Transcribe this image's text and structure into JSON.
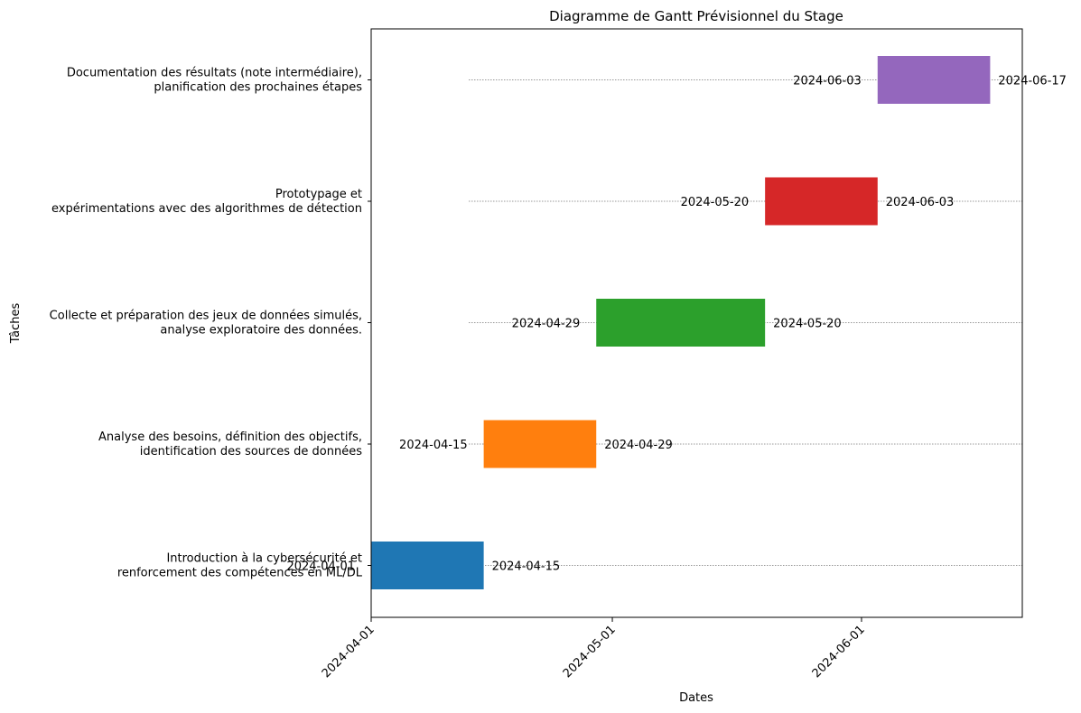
{
  "chart_data": {
    "type": "gantt",
    "title": "Diagramme de Gantt Prévisionnel du Stage",
    "xlabel": "Dates",
    "ylabel": "Tâches",
    "xlim": [
      "2024-04-01",
      "2024-06-21"
    ],
    "x_ticks": [
      "2024-04-01",
      "2024-05-01",
      "2024-06-01"
    ],
    "grid": "dotted horizontal guide line per task",
    "tasks": [
      {
        "label_lines": [
          "Introduction à la cybersécurité et",
          "renforcement des compétences en ML/DL"
        ],
        "start": "2024-04-01",
        "end": "2024-04-15",
        "start_label": "2024-04-01",
        "end_label": "2024-04-15",
        "color": "#1f77b4"
      },
      {
        "label_lines": [
          "Analyse des besoins, définition des objectifs,",
          "identification des sources de données"
        ],
        "start": "2024-04-15",
        "end": "2024-04-29",
        "start_label": "2024-04-15",
        "end_label": "2024-04-29",
        "color": "#ff7f0e"
      },
      {
        "label_lines": [
          "Collecte et préparation des jeux de données simulés,",
          "analyse exploratoire des données."
        ],
        "start": "2024-04-29",
        "end": "2024-05-20",
        "start_label": "2024-04-29",
        "end_label": "2024-05-20",
        "color": "#2ca02c"
      },
      {
        "label_lines": [
          "Prototypage et",
          "expérimentations avec des algorithmes de détection"
        ],
        "start": "2024-05-20",
        "end": "2024-06-03",
        "start_label": "2024-05-20",
        "end_label": "2024-06-03",
        "color": "#d62728"
      },
      {
        "label_lines": [
          "Documentation des résultats (note intermédiaire),",
          "planification des prochaines étapes"
        ],
        "start": "2024-06-03",
        "end": "2024-06-17",
        "start_label": "2024-06-03",
        "end_label": "2024-06-17",
        "color": "#9467bd"
      }
    ]
  }
}
